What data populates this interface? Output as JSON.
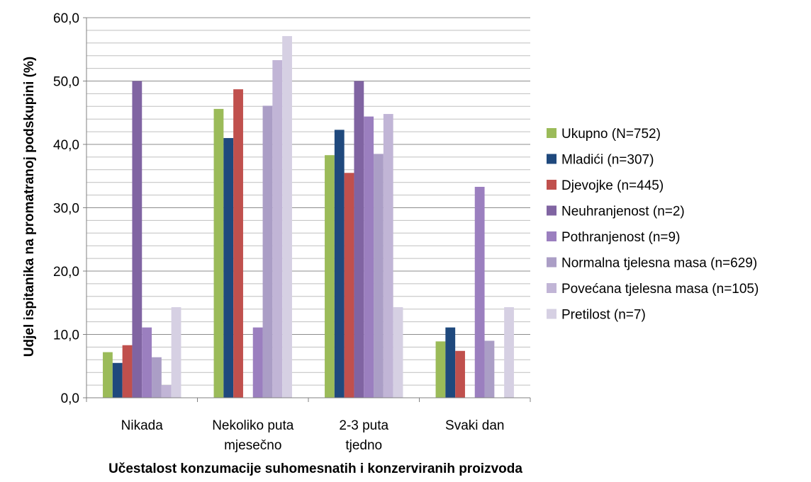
{
  "chart_data": {
    "type": "bar",
    "title": "",
    "xlabel": "Učestalost konzumacije suhomesnatih i konzerviranih proizvoda",
    "ylabel": "Udjel ispitanika na promatranoj podskupini (%)",
    "ylim": [
      0,
      60
    ],
    "y_ticks": [
      "0,0",
      "10,0",
      "20,0",
      "30,0",
      "40,0",
      "50,0",
      "60,0"
    ],
    "grid": true,
    "legend_position": "right",
    "categories": [
      [
        "Nikada"
      ],
      [
        "Nekoliko puta",
        "mjesečno"
      ],
      [
        "2-3 puta",
        "tjedno"
      ],
      [
        "Svaki dan"
      ]
    ],
    "series": [
      {
        "name": "Ukupno (N=752)",
        "color": "#9bbb59",
        "values": [
          7.2,
          45.6,
          38.3,
          8.9
        ]
      },
      {
        "name": "Mladići (n=307)",
        "color": "#1f497d",
        "values": [
          5.5,
          41.0,
          42.3,
          11.1
        ]
      },
      {
        "name": "Djevojke (n=445)",
        "color": "#c0504d",
        "values": [
          8.3,
          48.7,
          35.5,
          7.4
        ]
      },
      {
        "name": "Neuhranjenost (n=2)",
        "color": "#8064a2",
        "values": [
          50.0,
          0.0,
          50.0,
          0.0
        ]
      },
      {
        "name": "Pothranjenost (n=9)",
        "color": "#9b7fbf",
        "values": [
          11.1,
          11.1,
          44.4,
          33.3
        ]
      },
      {
        "name": "Normalna tjelesna masa (n=629)",
        "color": "#ab9ec6",
        "values": [
          6.4,
          46.1,
          38.5,
          9.0
        ]
      },
      {
        "name": "Povećana tjelesna masa (n=105)",
        "color": "#c1b5d6",
        "values": [
          2.0,
          53.3,
          44.8,
          0.0
        ]
      },
      {
        "name": "Pretilost (n=7)",
        "color": "#d6d0e3",
        "values": [
          14.3,
          57.1,
          14.3,
          14.3
        ]
      }
    ]
  }
}
